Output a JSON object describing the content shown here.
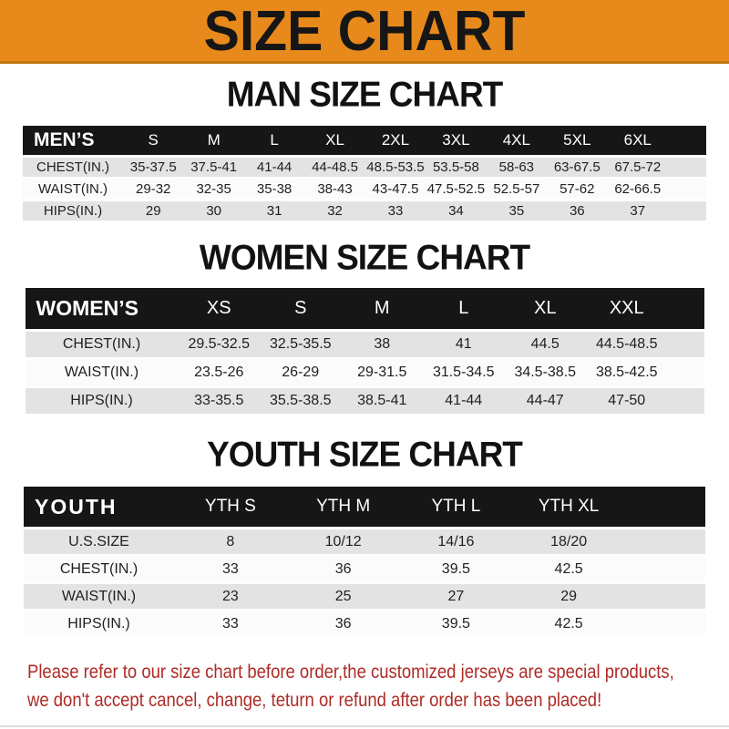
{
  "banner": {
    "title": "SIZE CHART"
  },
  "colors": {
    "banner_orange": "#E8891B",
    "header_black": "#161616",
    "row_gray": "#E3E3E3",
    "note_red": "#AE2B26"
  },
  "sections": [
    {
      "heading": "MAN SIZE CHART",
      "header_label": "MEN’S",
      "columns": [
        "S",
        "M",
        "L",
        "XL",
        "2XL",
        "3XL",
        "4XL",
        "5XL",
        "6XL"
      ],
      "rows": [
        {
          "label": "CHEST(IN.)",
          "values": [
            "35-37.5",
            "37.5-41",
            "41-44",
            "44-48.5",
            "48.5-53.5",
            "53.5-58",
            "58-63",
            "63-67.5",
            "67.5-72"
          ]
        },
        {
          "label": "WAIST(IN.)",
          "values": [
            "29-32",
            "32-35",
            "35-38",
            "38-43",
            "43-47.5",
            "47.5-52.5",
            "52.5-57",
            "57-62",
            "62-66.5"
          ]
        },
        {
          "label": "HIPS(IN.)",
          "values": [
            "29",
            "30",
            "31",
            "32",
            "33",
            "34",
            "35",
            "36",
            "37"
          ]
        }
      ]
    },
    {
      "heading": "WOMEN SIZE CHART",
      "header_label": "WOMEN’S",
      "columns": [
        "XS",
        "S",
        "M",
        "L",
        "XL",
        "XXL"
      ],
      "rows": [
        {
          "label": "CHEST(IN.)",
          "values": [
            "29.5-32.5",
            "32.5-35.5",
            "38",
            "41",
            "44.5",
            "44.5-48.5"
          ]
        },
        {
          "label": "WAIST(IN.)",
          "values": [
            "23.5-26",
            "26-29",
            "29-31.5",
            "31.5-34.5",
            "34.5-38.5",
            "38.5-42.5"
          ]
        },
        {
          "label": "HIPS(IN.)",
          "values": [
            "33-35.5",
            "35.5-38.5",
            "38.5-41",
            "41-44",
            "44-47",
            "47-50"
          ]
        }
      ]
    },
    {
      "heading": "YOUTH SIZE CHART",
      "header_label": "YOUTH",
      "columns": [
        "YTH S",
        "YTH M",
        "YTH L",
        "YTH XL"
      ],
      "rows": [
        {
          "label": "U.S.SIZE",
          "values": [
            "8",
            "10/12",
            "14/16",
            "18/20"
          ]
        },
        {
          "label": "CHEST(IN.)",
          "values": [
            "33",
            "36",
            "39.5",
            "42.5"
          ]
        },
        {
          "label": "WAIST(IN.)",
          "values": [
            "23",
            "25",
            "27",
            "29"
          ]
        },
        {
          "label": "HIPS(IN.)",
          "values": [
            "33",
            "36",
            "39.5",
            "42.5"
          ]
        }
      ]
    }
  ],
  "footer": {
    "line1": "Please refer to our size chart before order,the customized jerseys are special products,",
    "line2": "we don't accept cancel, change, teturn or refund after order has been placed!"
  }
}
